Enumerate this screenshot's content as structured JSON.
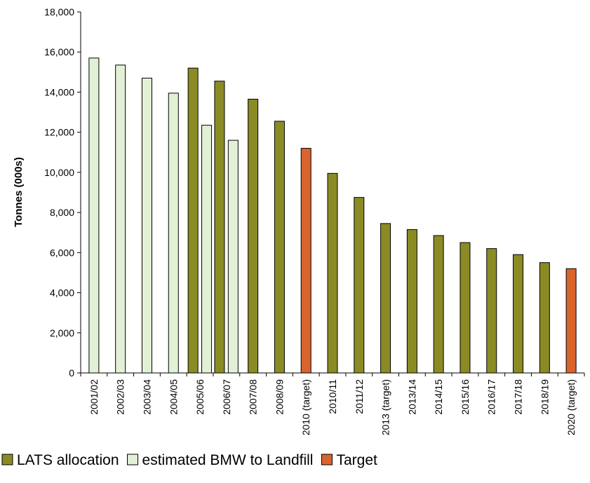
{
  "chart_data": {
    "type": "bar",
    "title": "",
    "xlabel": "",
    "ylabel": "Tonnes (000s)",
    "ylim": [
      0,
      18000
    ],
    "yticks": [
      0,
      2000,
      4000,
      6000,
      8000,
      10000,
      12000,
      14000,
      16000,
      18000
    ],
    "ytick_labels": [
      "0",
      "2,000",
      "4,000",
      "6,000",
      "8,000",
      "10,000",
      "12,000",
      "14,000",
      "16,000",
      "18,000"
    ],
    "grid": false,
    "legend_position": "bottom",
    "categories": [
      "2001/02",
      "2002/03",
      "2003/04",
      "2004/05",
      "2005/06",
      "2006/07",
      "2007/08",
      "2008/09",
      "2010 (target)",
      "2010/11",
      "2011/12",
      "2013 (target)",
      "2013/14",
      "2014/15",
      "2015/16",
      "2016/17",
      "2017/18",
      "2018/19",
      "2020 (target)"
    ],
    "series": [
      {
        "name": "LATS allocation",
        "color": "#8b8b25",
        "values": [
          null,
          null,
          null,
          null,
          15200,
          14550,
          13650,
          12550,
          null,
          9950,
          8750,
          7450,
          7150,
          6850,
          6500,
          6200,
          5900,
          5500,
          null
        ]
      },
      {
        "name": "estimated BMW to Landfill",
        "color": "#e2f0d5",
        "values": [
          15700,
          15350,
          14700,
          13950,
          12350,
          11600,
          null,
          null,
          null,
          null,
          null,
          null,
          null,
          null,
          null,
          null,
          null,
          null,
          null
        ]
      },
      {
        "name": "Target",
        "color": "#d9642e",
        "values": [
          null,
          null,
          null,
          null,
          null,
          null,
          null,
          null,
          11200,
          null,
          null,
          null,
          null,
          null,
          null,
          null,
          null,
          null,
          5200
        ]
      }
    ]
  }
}
